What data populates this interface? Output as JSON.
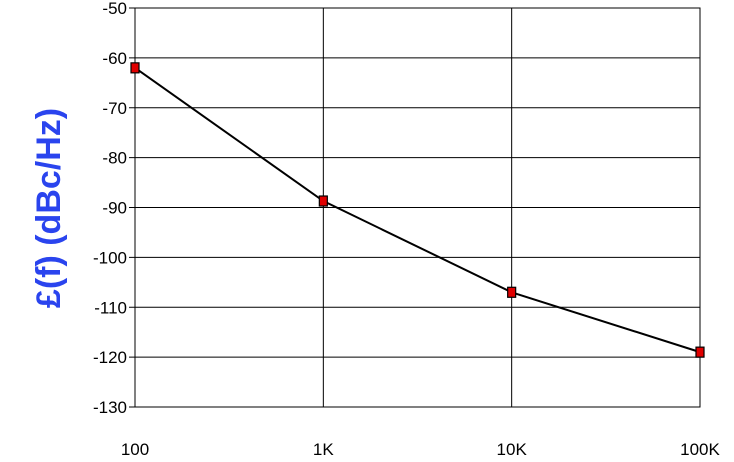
{
  "chart_data": {
    "type": "line",
    "title": "",
    "xlabel": "",
    "ylabel": "£(f) (dBc/Hz)",
    "x_scale": "log",
    "x": [
      100,
      1000,
      10000,
      100000
    ],
    "x_tick_labels": [
      "100",
      "1K",
      "10K",
      "100K"
    ],
    "ylim": [
      -130,
      -50
    ],
    "y_ticks": [
      -50,
      -60,
      -70,
      -80,
      -90,
      -100,
      -110,
      -120,
      -130
    ],
    "y_tick_labels": [
      "-50",
      "-60",
      "-70",
      "-80",
      "-90",
      "-100",
      "-110",
      "-120",
      "-130"
    ],
    "grid": true,
    "series": [
      {
        "values": [
          -62,
          -88.7,
          -107,
          -119
        ],
        "line_color": "#000000",
        "marker": "square",
        "marker_color": "#e00000"
      }
    ],
    "ylabel_color": "#2a44ee"
  }
}
